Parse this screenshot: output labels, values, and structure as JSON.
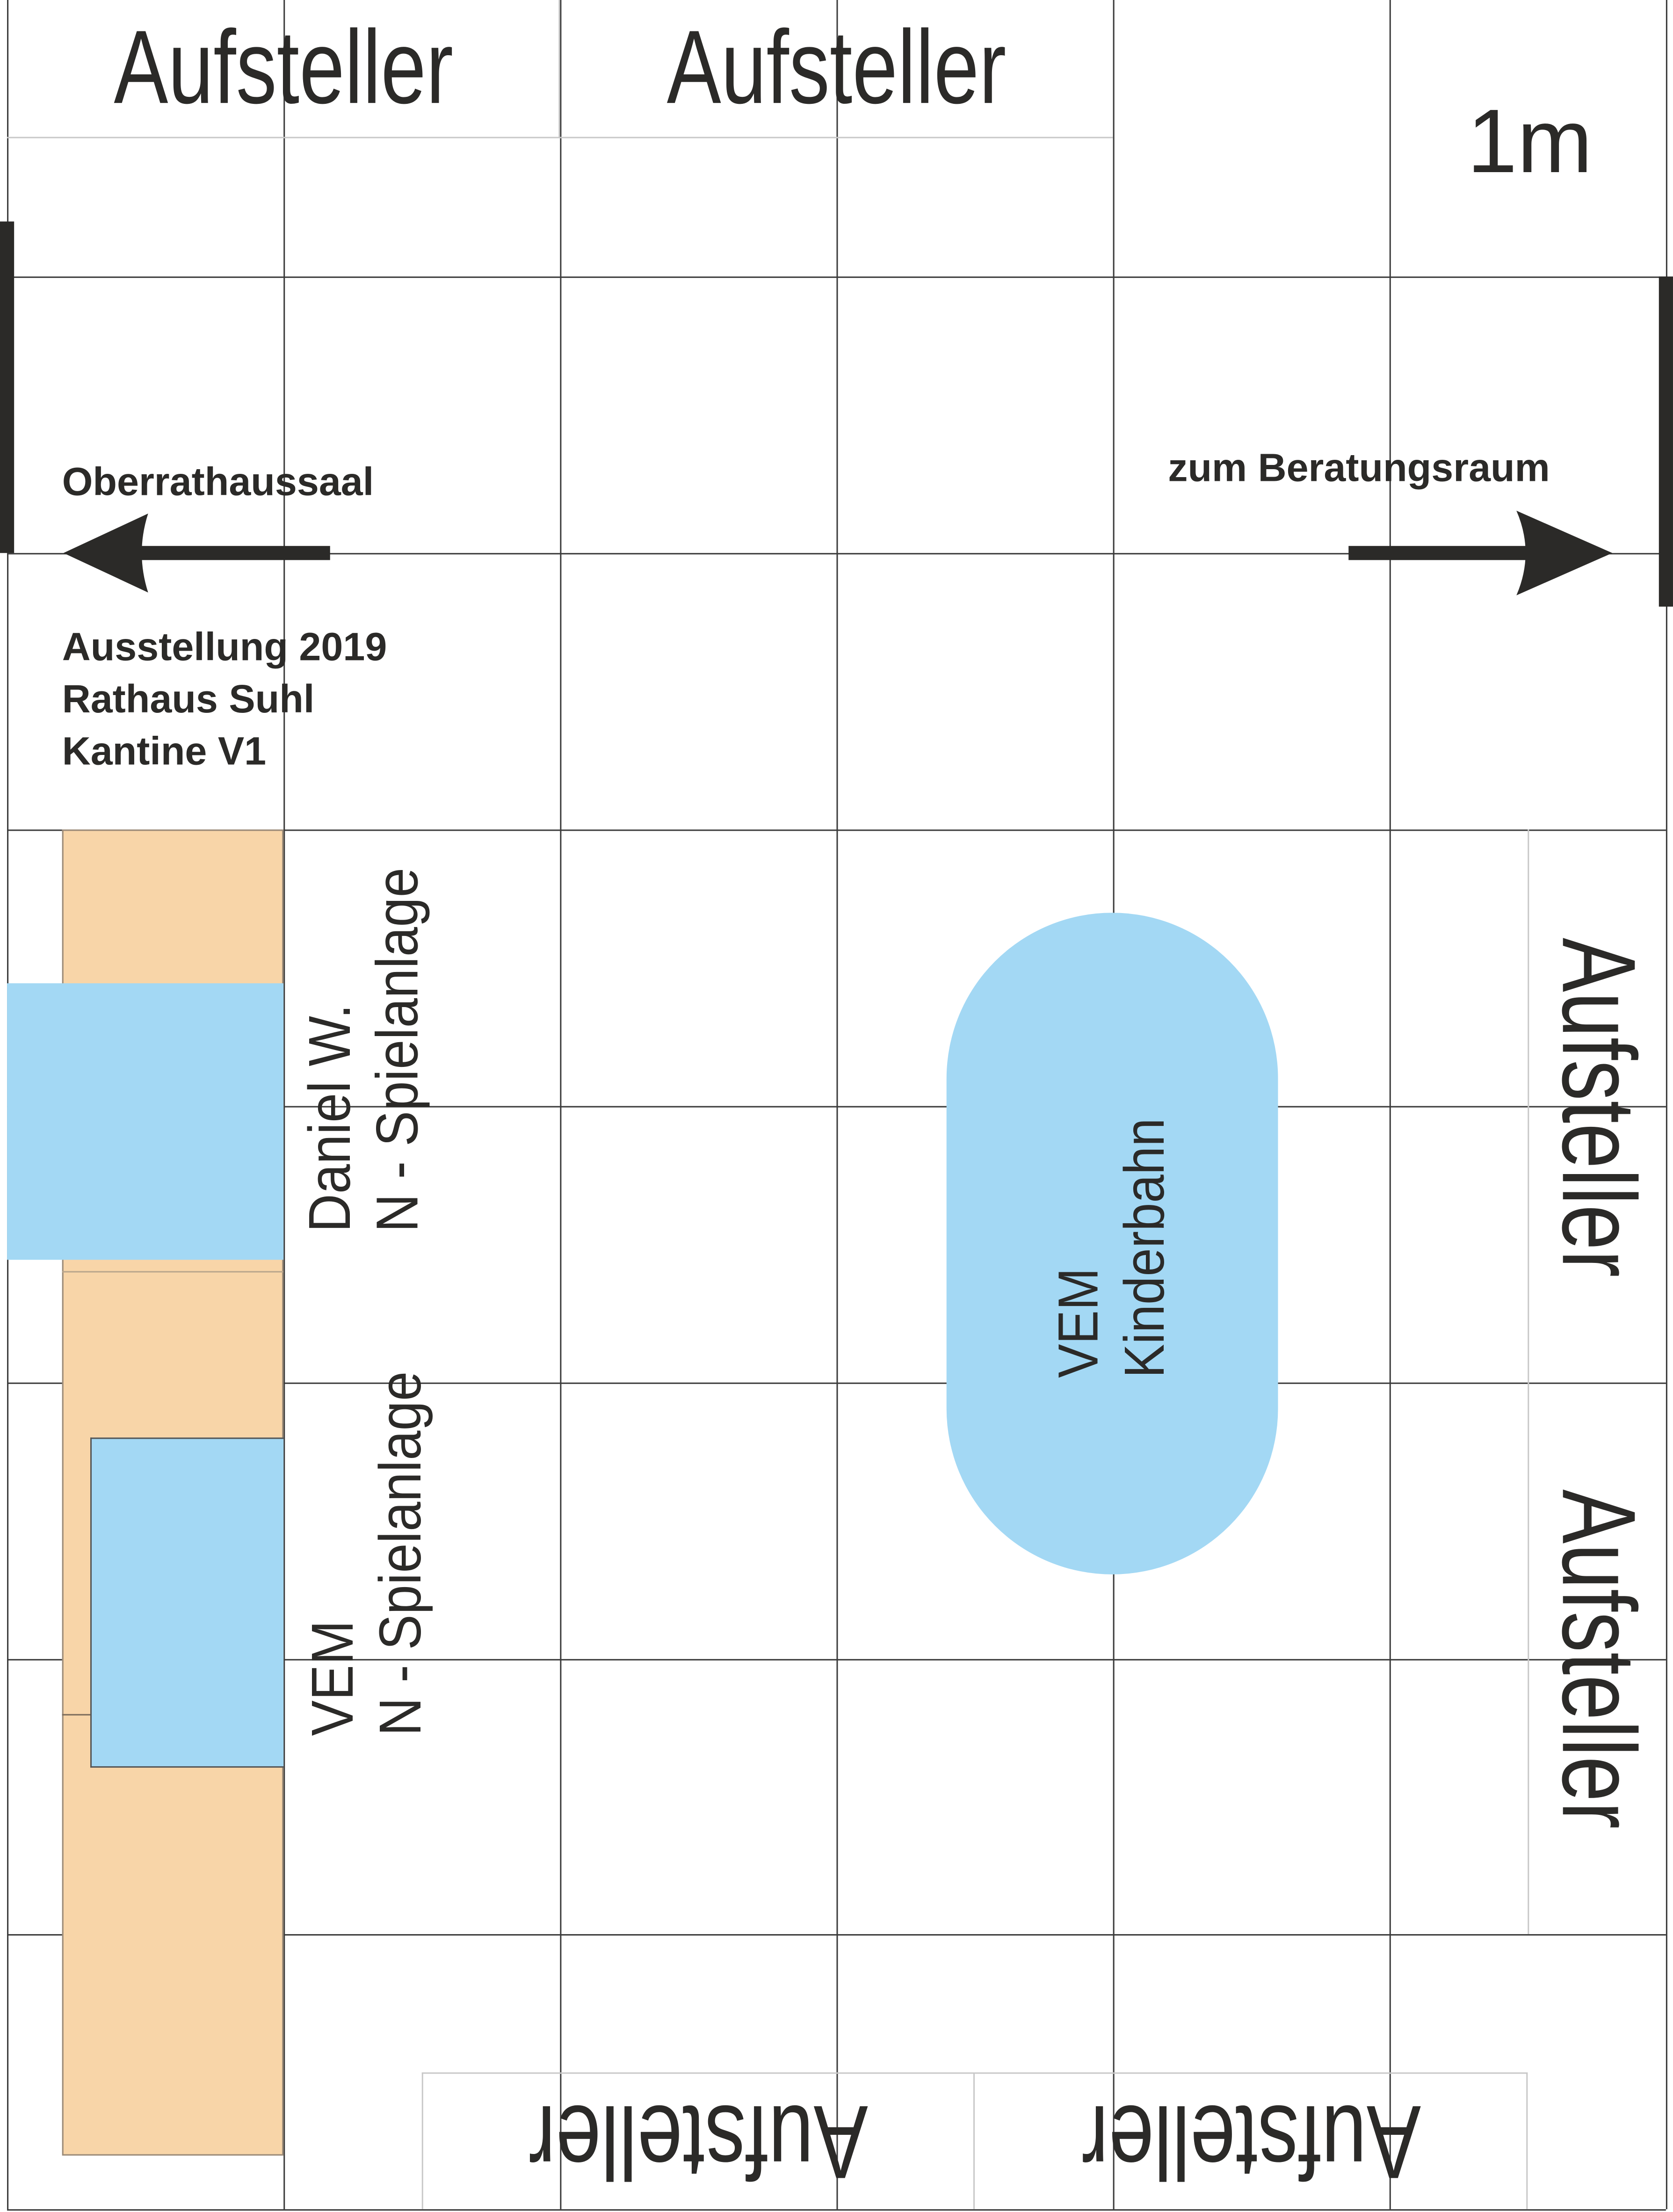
{
  "title": "Ausstellung 2019 Rathaus Suhl Kantine V1",
  "scale_label": "1m",
  "info_lines": [
    "Ausstellung 2019",
    "Rathaus Suhl",
    "Kantine V1"
  ],
  "exits": {
    "left": {
      "label": "Oberrathaussaal",
      "direction": "left"
    },
    "right": {
      "label": "zum Beratungsraum",
      "direction": "right"
    }
  },
  "vendor_label": "Aufsteller",
  "vendor_slots": [
    {
      "side": "top",
      "label": "Aufsteller"
    },
    {
      "side": "top",
      "label": "Aufsteller"
    },
    {
      "side": "right",
      "label": "Aufsteller"
    },
    {
      "side": "right",
      "label": "Aufsteller"
    },
    {
      "side": "bottom",
      "label": "Aufsteller"
    },
    {
      "side": "bottom",
      "label": "Aufsteller"
    }
  ],
  "exhibits": [
    {
      "name": "Daniel W.",
      "type": "N - Spielanlage"
    },
    {
      "name": "VEM",
      "type": "N - Spielanlage"
    },
    {
      "name": "VEM",
      "type": "Kinderbahn"
    }
  ],
  "colors": {
    "table": "#f8d5a8",
    "layout": "#a3d8f4",
    "ink": "#2b2a28",
    "grid": "#3a3a3a"
  }
}
